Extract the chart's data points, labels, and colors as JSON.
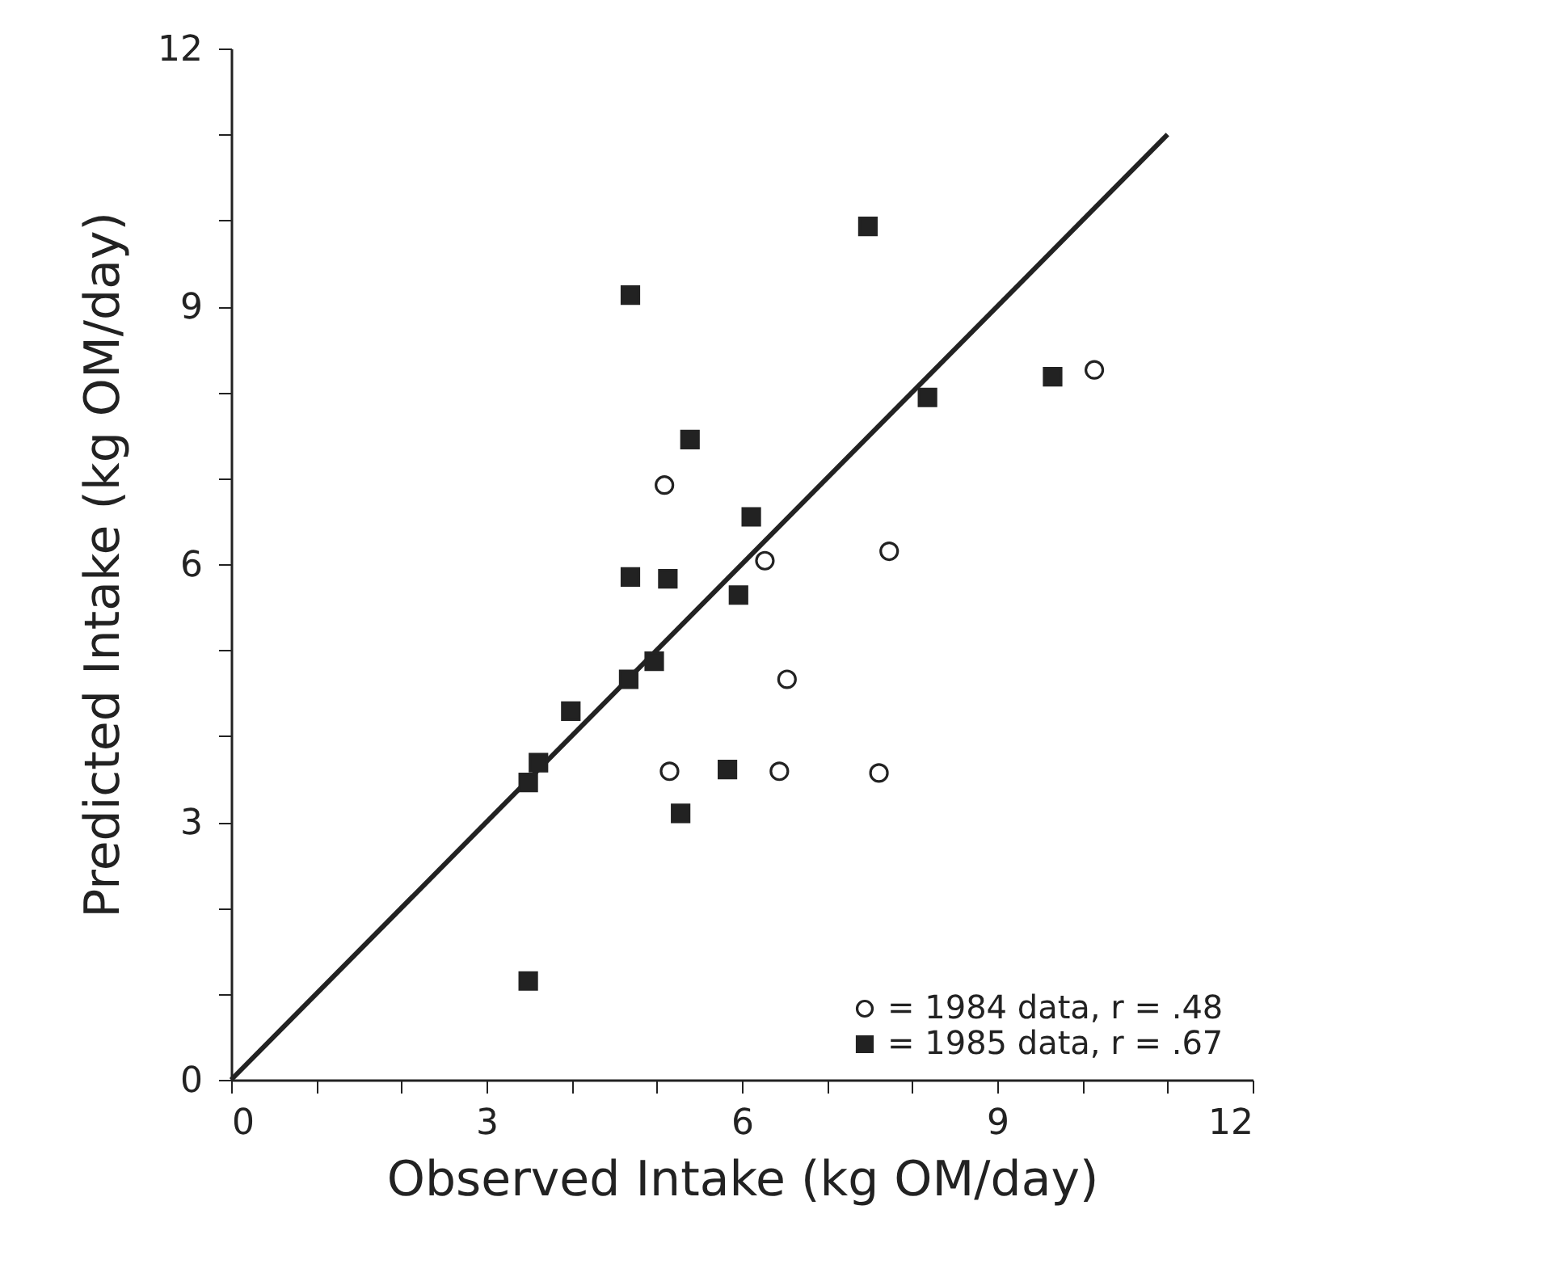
{
  "chart_data": {
    "type": "scatter",
    "xlabel": "Observed Intake   (kg OM/day)",
    "ylabel": "Predicted Intake   (kg OM/day)",
    "xlim": [
      0,
      12
    ],
    "ylim": [
      0,
      12
    ],
    "xticks": [
      0,
      {
        "value": 1,
        "label": null
      },
      {
        "value": 2,
        "label": null
      },
      3,
      {
        "value": 4,
        "label": null
      },
      {
        "value": 5,
        "label": null
      },
      6,
      {
        "value": 7,
        "label": null
      },
      {
        "value": 8,
        "label": null
      },
      9,
      {
        "value": 10,
        "label": null
      },
      {
        "value": 11,
        "label": null
      },
      12
    ],
    "yticks": [
      0,
      {
        "value": 1,
        "label": null
      },
      {
        "value": 2,
        "label": null
      },
      3,
      {
        "value": 4,
        "label": null
      },
      {
        "value": 5,
        "label": null
      },
      6,
      {
        "value": 7,
        "label": null
      },
      {
        "value": 8,
        "label": null
      },
      9,
      {
        "value": 10,
        "label": null
      },
      {
        "value": 11,
        "label": null
      },
      12
    ],
    "grid": false,
    "legend": "bottom right",
    "series": [
      {
        "name": "= 1984 data,  r = .48",
        "color": "#222222",
        "marker": "circle",
        "x": [
          5.09,
          6.27,
          7.73,
          6.53,
          5.15,
          6.44,
          7.61,
          10.14
        ],
        "values": [
          6.92,
          6.04,
          6.15,
          4.66,
          3.59,
          3.59,
          3.57,
          8.26
        ]
      },
      {
        "name": "= 1985 data,  r = .67",
        "color": "#222222",
        "marker": "square",
        "x": [
          4.69,
          7.48,
          5.39,
          6.11,
          4.69,
          5.13,
          5.96,
          4.97,
          4.67,
          3.99,
          3.61,
          3.49,
          5.83,
          5.28,
          3.49,
          8.18,
          9.65
        ],
        "values": [
          9.13,
          9.93,
          7.45,
          6.55,
          5.85,
          5.83,
          5.64,
          4.87,
          4.66,
          4.29,
          3.69,
          3.46,
          3.61,
          3.1,
          1.15,
          7.94,
          8.18
        ]
      },
      {
        "type": "line",
        "color": "#222222",
        "x": [
          0,
          11
        ],
        "values": [
          0,
          11
        ]
      }
    ]
  }
}
